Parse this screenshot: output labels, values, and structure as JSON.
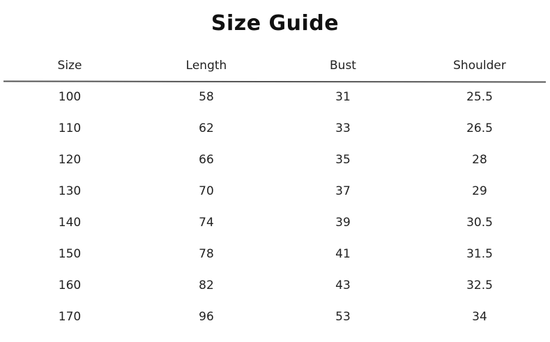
{
  "title": "Size Guide",
  "columns": [
    "Size",
    "Length",
    "Bust",
    "Shoulder"
  ],
  "rows": [
    [
      "100",
      "58",
      "31",
      "25.5"
    ],
    [
      "110",
      "62",
      "33",
      "26.5"
    ],
    [
      "120",
      "66",
      "35",
      "28"
    ],
    [
      "130",
      "70",
      "37",
      "29"
    ],
    [
      "140",
      "74",
      "39",
      "30.5"
    ],
    [
      "150",
      "78",
      "41",
      "31.5"
    ],
    [
      "160",
      "82",
      "43",
      "32.5"
    ],
    [
      "170",
      "96",
      "53",
      "34"
    ]
  ]
}
